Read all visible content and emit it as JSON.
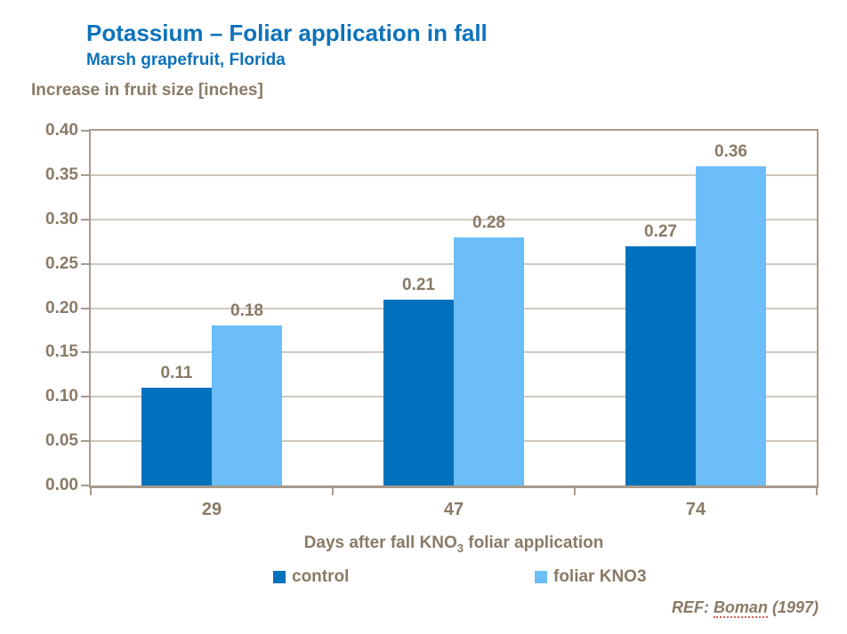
{
  "slide": {
    "title": "Potassium – Foliar application in fall",
    "subtitle": "Marsh grapefruit, Florida",
    "reference_parts": {
      "pre": "REF: ",
      "name": "Boman",
      "post": " (1997)"
    }
  },
  "colors": {
    "title_blue": "#0c72ba",
    "text_brown": "#8a7a66",
    "gridline": "#cfc8bd",
    "axis_border": "#a79a8c",
    "background": "#ffffff"
  },
  "chart_data": {
    "type": "bar",
    "value_axis_title": "Increase in fruit size [inches]",
    "categories": [
      "29",
      "47",
      "74"
    ],
    "series": [
      {
        "name": "control",
        "color": "#0071bd",
        "values": [
          0.11,
          0.21,
          0.27
        ]
      },
      {
        "name": "foliar KNO3",
        "color": "#6cbef8",
        "values": [
          0.18,
          0.28,
          0.36
        ]
      }
    ],
    "xlabel": "Days after fall KNO3 foliar application",
    "xlabel_parts": {
      "pre": "Days after fall KNO",
      "sub": "3",
      "post": " foliar application"
    },
    "ylim": [
      0,
      0.4
    ],
    "y_tick_step": 0.05,
    "y_ticks": [
      "0.00",
      "0.05",
      "0.10",
      "0.15",
      "0.20",
      "0.25",
      "0.30",
      "0.35",
      "0.40"
    ],
    "grid": "horizontal",
    "legend_position": "bottom",
    "value_labels": true
  }
}
